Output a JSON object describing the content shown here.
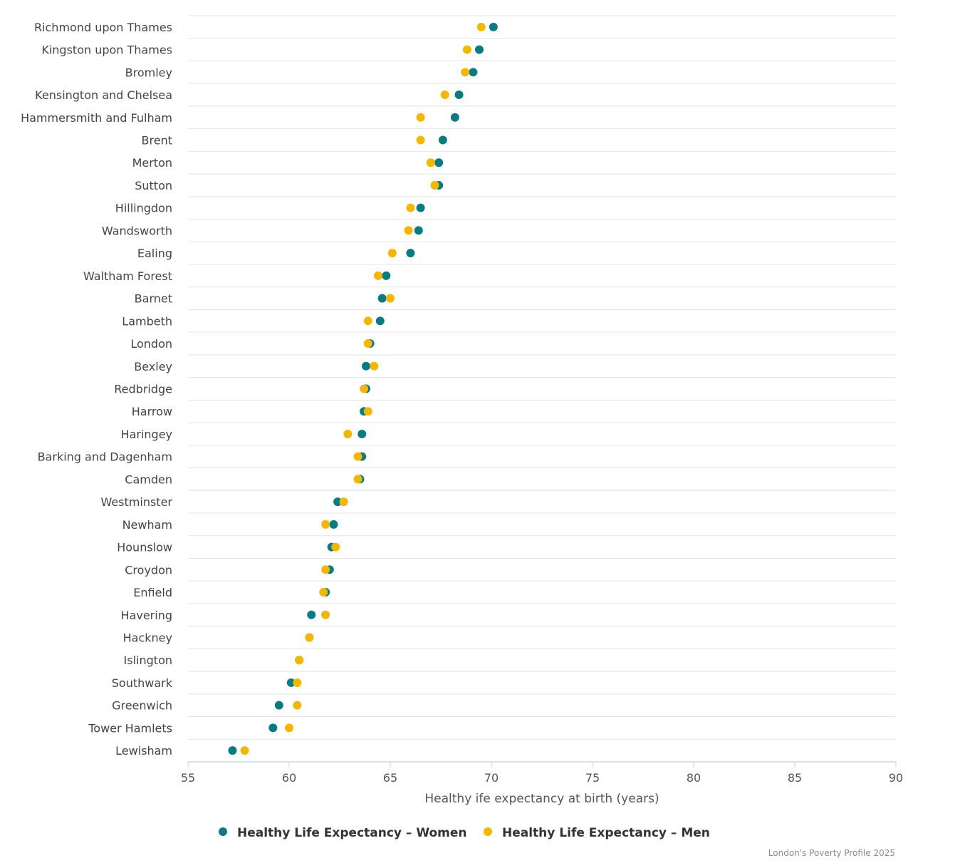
{
  "chart_data": {
    "type": "scatter",
    "orientation": "horizontal-dot-plot",
    "categories": [
      "Richmond upon Thames",
      "Kingston upon Thames",
      "Bromley",
      "Kensington and Chelsea",
      "Hammersmith and Fulham",
      "Brent",
      "Merton",
      "Sutton",
      "Hillingdon",
      "Wandsworth",
      "Ealing",
      "Waltham Forest",
      "Barnet",
      "Lambeth",
      "London",
      "Bexley",
      "Redbridge",
      "Harrow",
      "Haringey",
      "Barking and Dagenham",
      "Camden",
      "Westminster",
      "Newham",
      "Hounslow",
      "Croydon",
      "Enfield",
      "Havering",
      "Hackney",
      "Islington",
      "Southwark",
      "Greenwich",
      "Tower Hamlets",
      "Lewisham"
    ],
    "series": [
      {
        "name": "Healthy Life Expectancy – Women",
        "color": "#0a7b83",
        "values": [
          70.1,
          69.4,
          69.1,
          68.4,
          68.2,
          67.6,
          67.4,
          67.4,
          66.5,
          66.4,
          66.0,
          64.8,
          64.6,
          64.5,
          64.0,
          63.8,
          63.8,
          63.7,
          63.6,
          63.6,
          63.5,
          62.4,
          62.2,
          62.1,
          62.0,
          61.8,
          61.1,
          61.0,
          60.5,
          60.1,
          59.5,
          59.2,
          57.2
        ]
      },
      {
        "name": "Healthy Life Expectancy – Men",
        "color": "#f2b705",
        "values": [
          69.5,
          68.8,
          68.7,
          67.7,
          66.5,
          66.5,
          67.0,
          67.2,
          66.0,
          65.9,
          65.1,
          64.4,
          65.0,
          63.9,
          63.9,
          64.2,
          63.7,
          63.9,
          62.9,
          63.4,
          63.4,
          62.7,
          61.8,
          62.3,
          61.8,
          61.7,
          61.8,
          61.0,
          60.5,
          60.4,
          60.4,
          60.0,
          57.8
        ]
      }
    ],
    "xlabel": "Healthy ife expectancy at birth (years)",
    "ylabel": "",
    "xlim": [
      55,
      90
    ],
    "xticks": [
      "55",
      "60",
      "65",
      "70",
      "75",
      "80",
      "85",
      "90"
    ],
    "grid": "horizontal",
    "legend_position": "bottom-center"
  },
  "legend": {
    "women_label": "Healthy Life Expectancy – Women",
    "men_label": "Healthy Life Expectancy – Men"
  },
  "credit": "London's Poverty Profile 2025"
}
